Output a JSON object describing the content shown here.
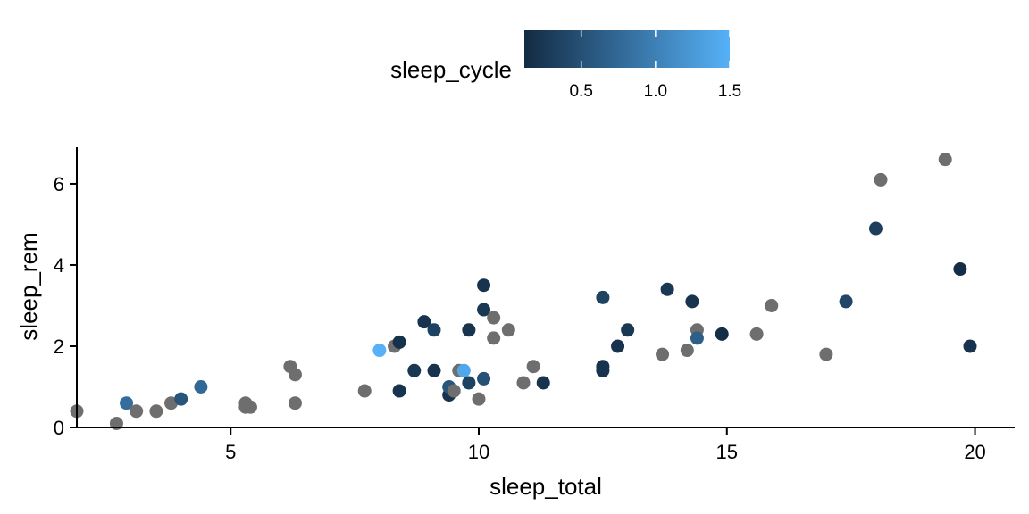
{
  "chart_data": {
    "type": "scatter",
    "xlabel": "sleep_total",
    "ylabel": "sleep_rem",
    "xlim": [
      1.9,
      20.8
    ],
    "ylim": [
      0,
      6.9
    ],
    "x_ticks": [
      5,
      10,
      15,
      20
    ],
    "y_ticks": [
      0,
      2,
      4,
      6
    ],
    "grid": false,
    "na_color": "#6e6e6e",
    "legend": {
      "title": "sleep_cycle",
      "placement": "top",
      "type": "colorbar",
      "range": [
        0.117,
        1.5
      ],
      "ticks": [
        "0.5",
        "1.0",
        "1.5"
      ],
      "tick_values": [
        0.5,
        1.0,
        1.5
      ],
      "low_color": "#132b43",
      "high_color": "#56b1f7"
    },
    "points": [
      {
        "x": 1.9,
        "y": 0.4,
        "c": null
      },
      {
        "x": 2.7,
        "y": 0.1,
        "c": null
      },
      {
        "x": 2.9,
        "y": 0.6,
        "c": 0.8
      },
      {
        "x": 3.1,
        "y": 0.4,
        "c": null
      },
      {
        "x": 3.5,
        "y": 0.4,
        "c": null
      },
      {
        "x": 3.8,
        "y": 0.6,
        "c": null
      },
      {
        "x": 4.0,
        "y": 0.7,
        "c": 0.55
      },
      {
        "x": 4.4,
        "y": 1.0,
        "c": 0.75
      },
      {
        "x": 5.3,
        "y": 0.6,
        "c": null
      },
      {
        "x": 5.3,
        "y": 0.5,
        "c": null
      },
      {
        "x": 5.4,
        "y": 0.5,
        "c": null
      },
      {
        "x": 6.2,
        "y": 1.5,
        "c": null
      },
      {
        "x": 6.3,
        "y": 1.3,
        "c": null
      },
      {
        "x": 6.3,
        "y": 0.6,
        "c": null
      },
      {
        "x": 7.7,
        "y": 0.9,
        "c": null
      },
      {
        "x": 8.0,
        "y": 1.9,
        "c": 1.5
      },
      {
        "x": 8.3,
        "y": 2.0,
        "c": null
      },
      {
        "x": 8.4,
        "y": 2.1,
        "c": 0.18
      },
      {
        "x": 8.4,
        "y": 0.9,
        "c": 0.2
      },
      {
        "x": 8.7,
        "y": 1.4,
        "c": 0.25
      },
      {
        "x": 8.9,
        "y": 2.6,
        "c": 0.2
      },
      {
        "x": 9.1,
        "y": 2.4,
        "c": 0.35
      },
      {
        "x": 9.1,
        "y": 1.4,
        "c": 0.2
      },
      {
        "x": 9.4,
        "y": 0.8,
        "c": 0.2
      },
      {
        "x": 9.4,
        "y": 1.0,
        "c": 0.55
      },
      {
        "x": 9.5,
        "y": 0.9,
        "c": null
      },
      {
        "x": 9.6,
        "y": 1.4,
        "c": null
      },
      {
        "x": 9.7,
        "y": 1.4,
        "c": 1.4
      },
      {
        "x": 9.8,
        "y": 2.4,
        "c": 0.2
      },
      {
        "x": 9.8,
        "y": 1.1,
        "c": 0.35
      },
      {
        "x": 10.0,
        "y": 0.7,
        "c": null
      },
      {
        "x": 10.1,
        "y": 3.5,
        "c": 0.2
      },
      {
        "x": 10.1,
        "y": 2.9,
        "c": 0.25
      },
      {
        "x": 10.1,
        "y": 1.2,
        "c": 0.5
      },
      {
        "x": 10.3,
        "y": 2.7,
        "c": null
      },
      {
        "x": 10.3,
        "y": 2.2,
        "c": null
      },
      {
        "x": 10.6,
        "y": 2.4,
        "c": null
      },
      {
        "x": 10.9,
        "y": 1.1,
        "c": null
      },
      {
        "x": 11.1,
        "y": 1.5,
        "c": null
      },
      {
        "x": 11.3,
        "y": 1.1,
        "c": 0.2
      },
      {
        "x": 12.5,
        "y": 3.2,
        "c": 0.35
      },
      {
        "x": 12.5,
        "y": 1.5,
        "c": 0.2
      },
      {
        "x": 12.5,
        "y": 1.4,
        "c": 0.2
      },
      {
        "x": 12.8,
        "y": 2.0,
        "c": 0.2
      },
      {
        "x": 13.0,
        "y": 2.4,
        "c": 0.25
      },
      {
        "x": 13.7,
        "y": 1.8,
        "c": null
      },
      {
        "x": 13.8,
        "y": 3.4,
        "c": 0.25
      },
      {
        "x": 14.2,
        "y": 1.9,
        "c": null
      },
      {
        "x": 14.3,
        "y": 3.1,
        "c": 0.2
      },
      {
        "x": 14.4,
        "y": 2.4,
        "c": null
      },
      {
        "x": 14.4,
        "y": 2.2,
        "c": 0.65
      },
      {
        "x": 14.9,
        "y": 2.3,
        "c": 0.15
      },
      {
        "x": 15.6,
        "y": 2.3,
        "c": null
      },
      {
        "x": 15.9,
        "y": 3.0,
        "c": null
      },
      {
        "x": 17.0,
        "y": 1.8,
        "c": null
      },
      {
        "x": 17.4,
        "y": 3.1,
        "c": 0.4
      },
      {
        "x": 18.0,
        "y": 4.9,
        "c": 0.3
      },
      {
        "x": 18.1,
        "y": 6.1,
        "c": null
      },
      {
        "x": 19.4,
        "y": 6.6,
        "c": null
      },
      {
        "x": 19.7,
        "y": 3.9,
        "c": 0.15
      },
      {
        "x": 19.9,
        "y": 2.0,
        "c": 0.2
      }
    ]
  }
}
